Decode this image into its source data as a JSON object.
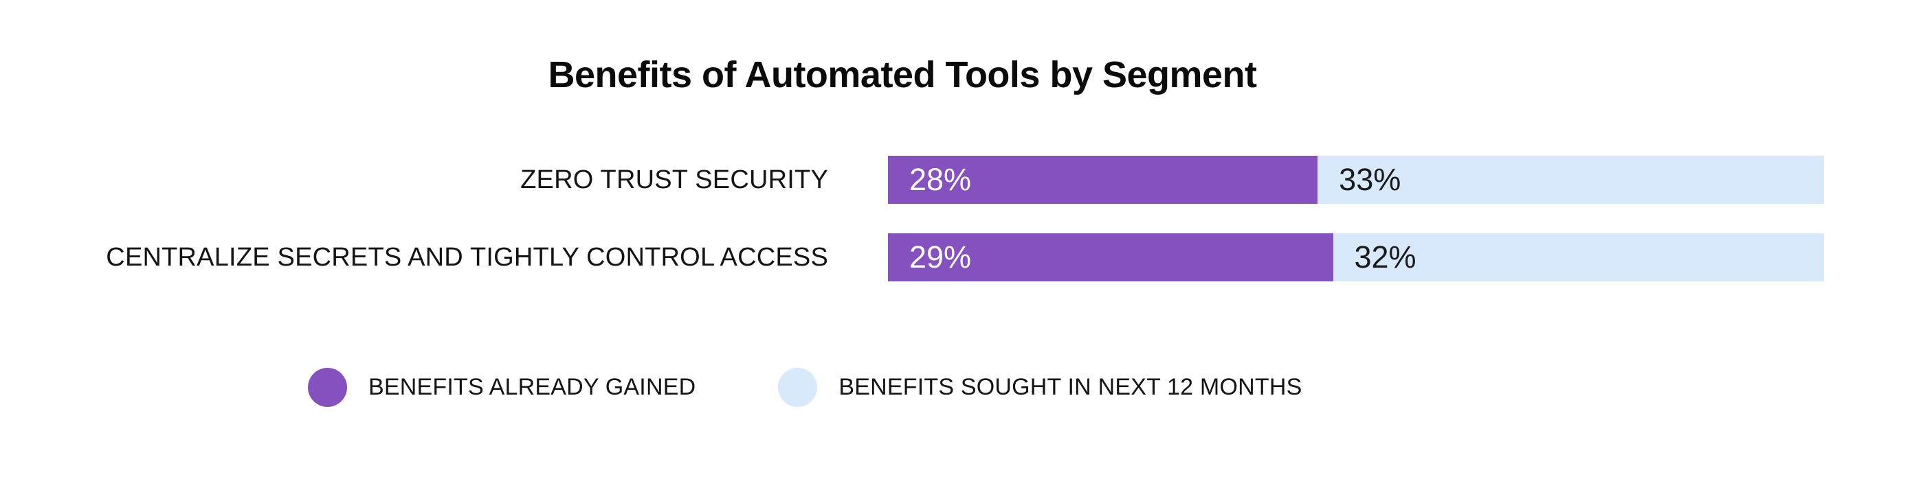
{
  "chart_data": {
    "type": "bar",
    "variant": "horizontal-stacked",
    "title": "Benefits of Automated Tools by Segment",
    "categories": [
      "ZERO TRUST SECURITY",
      "CENTRALIZE SECRETS AND TIGHTLY CONTROL ACCESS"
    ],
    "series": [
      {
        "name": "BENEFITS ALREADY GAINED",
        "color": "#8551BE",
        "values": [
          28,
          29
        ]
      },
      {
        "name": "BENEFITS SOUGHT IN NEXT 12 MONTHS",
        "color": "#D8E9FC",
        "values": [
          33,
          32
        ]
      }
    ],
    "rows": [
      {
        "category": "ZERO TRUST SECURITY",
        "gained_label": "28%",
        "sought_label": "33%"
      },
      {
        "category": "CENTRALIZE SECRETS AND TIGHTLY CONTROL ACCESS",
        "gained_label": "29%",
        "sought_label": "32%"
      }
    ],
    "x_max": 61,
    "xlabel": "",
    "ylabel": "",
    "grid": false,
    "legend_position": "bottom",
    "value_label_colors": {
      "on_gained": "#FFFFFF",
      "on_sought": "#1A1A1A"
    },
    "background": "#FFFFFF"
  }
}
